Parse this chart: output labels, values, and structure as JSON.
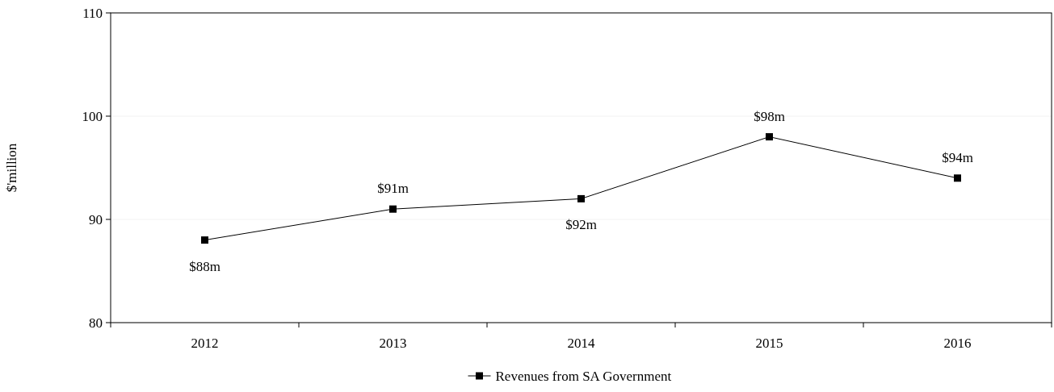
{
  "chart_data": {
    "type": "line",
    "ylabel": "$'million",
    "categories": [
      "2012",
      "2013",
      "2014",
      "2015",
      "2016"
    ],
    "series": [
      {
        "name": "Revenues from SA Government",
        "color": "#000000",
        "values": [
          88,
          91,
          92,
          98,
          94
        ],
        "value_labels": [
          "$88m",
          "$91m",
          "$92m",
          "$98m",
          "$94m"
        ]
      }
    ],
    "ylim": [
      80,
      110
    ],
    "yticks": [
      80,
      90,
      100,
      110
    ],
    "grid": "y",
    "legend": "bottom",
    "marker": "square"
  }
}
